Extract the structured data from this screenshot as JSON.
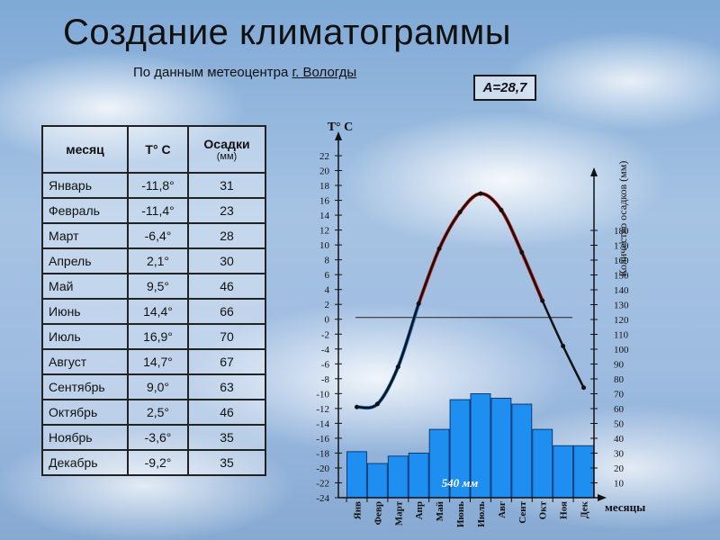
{
  "page": {
    "title": "Создание климатограммы",
    "subtitle_prefix": "По данным метеоцентра ",
    "subtitle_city": "г. Вологды",
    "amplitude": "А=28,7"
  },
  "table": {
    "headers": {
      "month": "месяц",
      "temp": "Т° С",
      "precip": "Осадки",
      "precip_unit": "(мм)"
    },
    "rows": [
      {
        "month": "Январь",
        "temp": "-11,8°",
        "precip": "31"
      },
      {
        "month": "Февраль",
        "temp": "-11,4°",
        "precip": "23"
      },
      {
        "month": "Март",
        "temp": "-6,4°",
        "precip": "28"
      },
      {
        "month": "Апрель",
        "temp": "2,1°",
        "precip": "30"
      },
      {
        "month": "Май",
        "temp": "9,5°",
        "precip": "46"
      },
      {
        "month": "Июнь",
        "temp": "14,4°",
        "precip": "66"
      },
      {
        "month": "Июль",
        "temp": "16,9°",
        "precip": "70"
      },
      {
        "month": "Август",
        "temp": "14,7°",
        "precip": "67"
      },
      {
        "month": "Сентябрь",
        "temp": "9,0°",
        "precip": "63"
      },
      {
        "month": "Октябрь",
        "temp": "2,5°",
        "precip": "46"
      },
      {
        "month": "Ноябрь",
        "temp": "-3,6°",
        "precip": "35"
      },
      {
        "month": "Декабрь",
        "temp": "-9,2°",
        "precip": "35"
      }
    ]
  },
  "chart_data": {
    "type": "bar",
    "categories": [
      "Янв",
      "Февр",
      "Март",
      "Апр",
      "Май",
      "Июнь",
      "Июль",
      "Авг",
      "Сент",
      "Окт",
      "Ноя",
      "Дек"
    ],
    "series": [
      {
        "values": [
          31,
          23,
          28,
          30,
          46,
          66,
          70,
          67,
          63,
          46,
          35,
          35
        ]
      },
      {
        "values": [
          -11.8,
          -11.4,
          -6.4,
          2.1,
          9.5,
          14.4,
          16.9,
          14.7,
          9.0,
          2.5,
          -3.6,
          -9.2
        ]
      }
    ],
    "temp_label": "Т° С",
    "precip_label": "Количество осадков (мм)",
    "xlabel": "месяцы",
    "annual_total_label": "540 мм",
    "temp_ticks": [
      22,
      20,
      18,
      16,
      14,
      12,
      10,
      8,
      6,
      4,
      2,
      0,
      -2,
      -4,
      -6,
      -8,
      -10,
      -12,
      -14,
      -16,
      -18,
      -20,
      -22,
      -24
    ],
    "temp_tick_labels": [
      "22",
      "20",
      "18",
      "16",
      "14",
      "12",
      "10",
      "8",
      "6",
      "4",
      "2",
      "0",
      "-2",
      "-4",
      "-6",
      "-8",
      "-10",
      "-12",
      "-14",
      "-16",
      "-18",
      "-20",
      "-22",
      "-24"
    ],
    "precip_ticks": [
      180,
      170,
      160,
      150,
      140,
      130,
      120,
      110,
      100,
      90,
      80,
      70,
      60,
      50,
      40,
      30,
      20,
      10
    ],
    "ylim_temp": [
      -24,
      22
    ],
    "colors": {
      "bars": "#1e8ef0",
      "bar_edge": "#0b3a7a",
      "warm_line": "#e0201a",
      "cold_line": "#1a7ad6",
      "main_line": "#111111"
    }
  }
}
